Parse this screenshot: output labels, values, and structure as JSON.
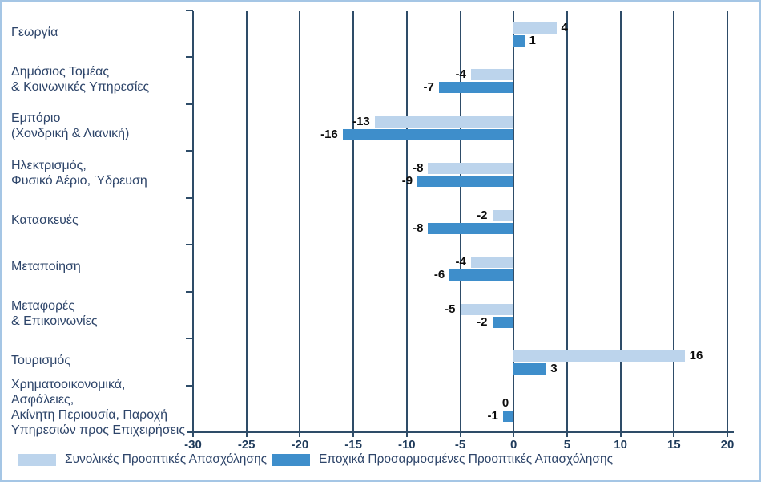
{
  "chart_data": {
    "type": "bar",
    "orientation": "horizontal",
    "title": "",
    "xlabel": "",
    "ylabel": "",
    "xlim": [
      -30,
      20
    ],
    "x_ticks": [
      -30,
      -25,
      -20,
      -15,
      -10,
      -5,
      0,
      5,
      10,
      15,
      20
    ],
    "grid": true,
    "legend_position": "bottom",
    "categories": [
      "Γεωργία",
      "Δημόσιος Τομέας\n& Κοινωνικές Υπηρεσίες",
      "Εμπόριο\n(Χονδρική & Λιανική)",
      "Ηλεκτρισμός,\nΦυσικό Αέριο, Ύδρευση",
      "Κατασκευές",
      "Μεταποίηση",
      "Μεταφορές\n& Επικοινωνίες",
      "Τουρισμός",
      "Χρηματοοικονομικά, Ασφάλειες,\nΑκίνητη Περιουσία, Παροχή\nΥπηρεσιών προς Επιχειρήσεις"
    ],
    "series": [
      {
        "name": "Συνολικές Προοπτικές Απασχόλησης",
        "color": "#bcd4ec",
        "values": [
          4,
          -4,
          -13,
          -8,
          -2,
          -4,
          -5,
          16,
          0
        ]
      },
      {
        "name": "Εποχικά Προσαρμοσμένες Προοπτικές Απασχόλησης",
        "color": "#3e8ecb",
        "values": [
          1,
          -7,
          -16,
          -9,
          -8,
          -6,
          -2,
          3,
          -1
        ]
      }
    ]
  },
  "colors": {
    "frame_border": "#a5c6e5",
    "gridline": "#2e4c68",
    "category_text": "#2e456a",
    "axis_tick_text": "#1e3a5a",
    "value_text": "#0c0c0c",
    "background": "#ffffff"
  }
}
